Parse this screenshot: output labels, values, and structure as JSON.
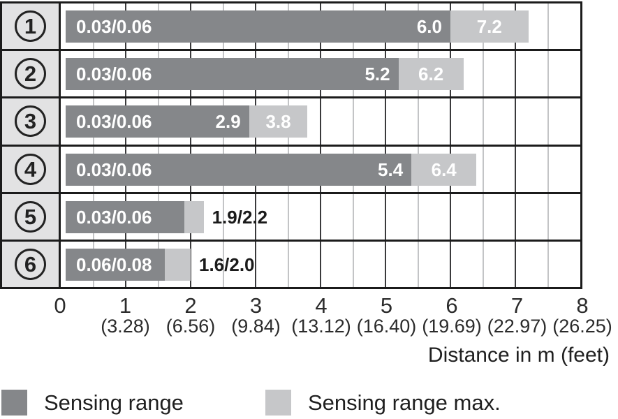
{
  "chart_data": {
    "type": "bar",
    "orientation": "horizontal",
    "xlabel": "Distance in m (feet)",
    "xlim": [
      0,
      8
    ],
    "grid": "on",
    "legend_position": "bottom",
    "x_ticks": [
      {
        "m": "0",
        "feet": ""
      },
      {
        "m": "1",
        "feet": "(3.28)"
      },
      {
        "m": "2",
        "feet": "(6.56)"
      },
      {
        "m": "3",
        "feet": "(9.84)"
      },
      {
        "m": "4",
        "feet": "(13.12)"
      },
      {
        "m": "5",
        "feet": "(16.40)"
      },
      {
        "m": "6",
        "feet": "(19.69)"
      },
      {
        "m": "7",
        "feet": "(22.97)"
      },
      {
        "m": "8",
        "feet": "(26.25)"
      }
    ],
    "rows": [
      {
        "badge": "1",
        "min_label": "0.03/0.06",
        "sensing_range": 6.0,
        "sensing_range_max": 7.2,
        "range_label": "6.0",
        "max_label": "7.2",
        "outside_label": ""
      },
      {
        "badge": "2",
        "min_label": "0.03/0.06",
        "sensing_range": 5.2,
        "sensing_range_max": 6.2,
        "range_label": "5.2",
        "max_label": "6.2",
        "outside_label": ""
      },
      {
        "badge": "3",
        "min_label": "0.03/0.06",
        "sensing_range": 2.9,
        "sensing_range_max": 3.8,
        "range_label": "2.9",
        "max_label": "3.8",
        "outside_label": ""
      },
      {
        "badge": "4",
        "min_label": "0.03/0.06",
        "sensing_range": 5.4,
        "sensing_range_max": 6.4,
        "range_label": "5.4",
        "max_label": "6.4",
        "outside_label": ""
      },
      {
        "badge": "5",
        "min_label": "0.03/0.06",
        "sensing_range": 1.9,
        "sensing_range_max": 2.2,
        "range_label": "",
        "max_label": "",
        "outside_label": "1.9/2.2"
      },
      {
        "badge": "6",
        "min_label": "0.06/0.08",
        "sensing_range": 1.6,
        "sensing_range_max": 2.0,
        "range_label": "",
        "max_label": "",
        "outside_label": "1.6/2.0"
      }
    ],
    "legend": [
      {
        "label": "Sensing range",
        "color": "#85878a"
      },
      {
        "label": "Sensing range max.",
        "color": "#c6c7c9"
      }
    ],
    "colors": {
      "sensing_range": "#85878a",
      "sensing_range_max": "#c6c7c9",
      "row_label_background": "#e2e2e3",
      "grid_major": "#3a3a3c",
      "grid_minor": "#c3c4c6",
      "frame_border": "#1b1b1b"
    }
  }
}
